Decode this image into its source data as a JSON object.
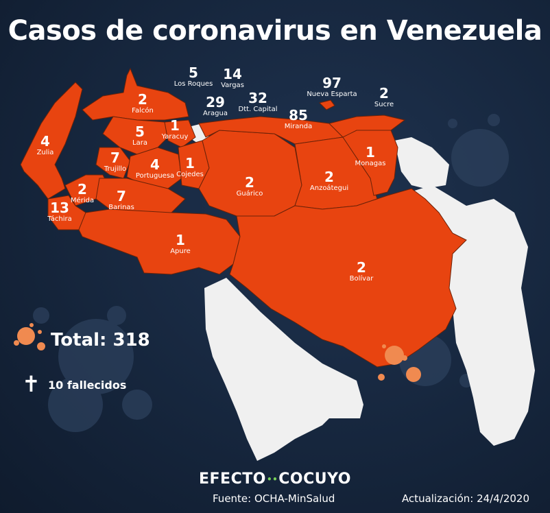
{
  "title": "Casos de coronavirus en Venezuela",
  "colors": {
    "affected": "#e84410",
    "neutral": "#f0f0f0",
    "background": "#16263d",
    "virus": "#f08a50",
    "brand_dot": "#7ad35a"
  },
  "states": [
    {
      "id": "zulia",
      "name": "Zulia",
      "cases": "4"
    },
    {
      "id": "falcon",
      "name": "Falcón",
      "cases": "2"
    },
    {
      "id": "lara",
      "name": "Lara",
      "cases": "5"
    },
    {
      "id": "yaracuy",
      "name": "Yaracuy",
      "cases": "1"
    },
    {
      "id": "trujillo",
      "name": "Trujillo",
      "cases": "7"
    },
    {
      "id": "portuguesa",
      "name": "Portuguesa",
      "cases": "4"
    },
    {
      "id": "cojedes",
      "name": "Cojedes",
      "cases": "1"
    },
    {
      "id": "merida",
      "name": "Mérida",
      "cases": "2"
    },
    {
      "id": "barinas",
      "name": "Barinas",
      "cases": "7"
    },
    {
      "id": "tachira",
      "name": "Táchira",
      "cases": "13"
    },
    {
      "id": "apure",
      "name": "Apure",
      "cases": "1"
    },
    {
      "id": "guarico",
      "name": "Guárico",
      "cases": "2"
    },
    {
      "id": "anzoategui",
      "name": "Anzoátegui",
      "cases": "2"
    },
    {
      "id": "monagas",
      "name": "Monagas",
      "cases": "1"
    },
    {
      "id": "bolivar",
      "name": "Bolívar",
      "cases": "2"
    },
    {
      "id": "los_roques",
      "name": "Los Roques",
      "cases": "5"
    },
    {
      "id": "vargas",
      "name": "Vargas",
      "cases": "14"
    },
    {
      "id": "aragua",
      "name": "Aragua",
      "cases": "29"
    },
    {
      "id": "dtto_capital",
      "name": "Dtt. Capital",
      "cases": "32"
    },
    {
      "id": "miranda",
      "name": "Miranda",
      "cases": "85"
    },
    {
      "id": "nueva_esparta",
      "name": "Nueva Esparta",
      "cases": "97"
    },
    {
      "id": "sucre",
      "name": "Sucre",
      "cases": "2"
    }
  ],
  "total_label": "Total: 318",
  "deaths_label": "10 fallecidos",
  "deaths_icon": "cross-icon",
  "virus_icon": "virus-icon",
  "brand": {
    "left": "EFECTO",
    "right": "COCUYO"
  },
  "source": "Fuente: OCHA-MinSalud",
  "updated": "Actualización: 24/4/2020"
}
